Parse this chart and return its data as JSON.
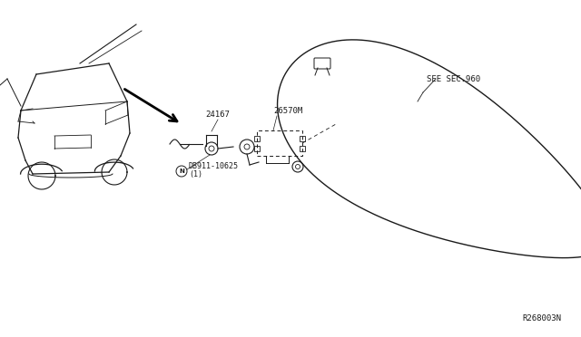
{
  "bg_color": "#ffffff",
  "line_color": "#1a1a1a",
  "text_color": "#1a1a1a",
  "labels": {
    "part1": "24167",
    "part2": "26570M",
    "part3_label": "DB911-10625",
    "part3_sub": "(1)",
    "part3_prefix": "N",
    "see_sec": "SEE SEC.960",
    "diagram_id": "R268003N"
  },
  "font_size_labels": 6.5,
  "font_size_id": 6.5
}
